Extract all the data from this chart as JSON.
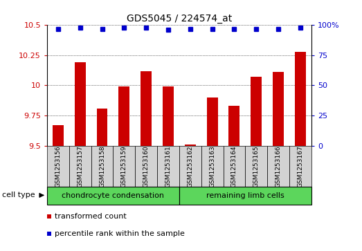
{
  "title": "GDS5045 / 224574_at",
  "samples": [
    "GSM1253156",
    "GSM1253157",
    "GSM1253158",
    "GSM1253159",
    "GSM1253160",
    "GSM1253161",
    "GSM1253162",
    "GSM1253163",
    "GSM1253164",
    "GSM1253165",
    "GSM1253166",
    "GSM1253167"
  ],
  "bar_values": [
    9.67,
    10.19,
    9.81,
    9.99,
    10.12,
    9.99,
    9.51,
    9.9,
    9.83,
    10.07,
    10.11,
    10.28
  ],
  "percentile_values": [
    97,
    98,
    97,
    98,
    98,
    96,
    97,
    97,
    97,
    97,
    97,
    98
  ],
  "bar_color": "#cc0000",
  "dot_color": "#0000cc",
  "ylim_left": [
    9.5,
    10.5
  ],
  "ylim_right": [
    0,
    100
  ],
  "yticks_left": [
    9.5,
    9.75,
    10.0,
    10.25,
    10.5
  ],
  "ytick_labels_left": [
    "9.5",
    "9.75",
    "10",
    "10.25",
    "10.5"
  ],
  "yticks_right": [
    0,
    25,
    50,
    75,
    100
  ],
  "ytick_labels_right": [
    "0",
    "25",
    "50",
    "75",
    "100%"
  ],
  "group1_label": "chondrocyte condensation",
  "group2_label": "remaining limb cells",
  "group1_count": 6,
  "group2_count": 6,
  "cell_type_label": "cell type",
  "legend1_label": "transformed count",
  "legend2_label": "percentile rank within the sample",
  "grid_color": "#000000",
  "bg_color": "#d3d3d3",
  "group1_color": "#5cd65c",
  "group2_color": "#5cd65c",
  "bar_width": 0.5
}
